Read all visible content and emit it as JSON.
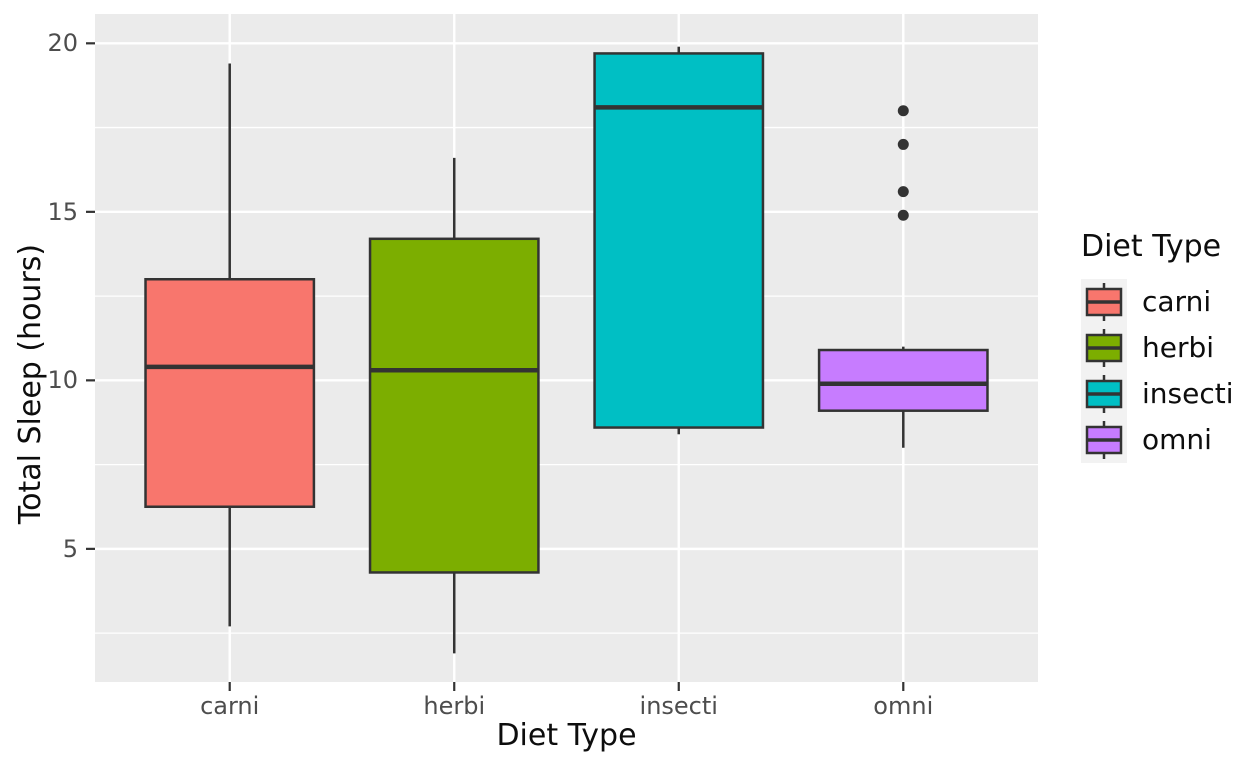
{
  "chart_data": {
    "type": "boxplot",
    "title": "",
    "xlabel": "Diet Type",
    "ylabel": "Total Sleep (hours)",
    "categories": [
      "carni",
      "herbi",
      "insecti",
      "omni"
    ],
    "series": [
      {
        "name": "carni",
        "color": "#F8766D",
        "min": 2.7,
        "q1": 6.25,
        "median": 10.4,
        "q3": 13.0,
        "max": 19.4,
        "outliers": []
      },
      {
        "name": "herbi",
        "color": "#7CAE00",
        "min": 1.9,
        "q1": 4.3,
        "median": 10.3,
        "q3": 14.2,
        "max": 16.6,
        "outliers": []
      },
      {
        "name": "insecti",
        "color": "#00BFC4",
        "min": 8.4,
        "q1": 8.6,
        "median": 18.1,
        "q3": 19.7,
        "max": 19.9,
        "outliers": []
      },
      {
        "name": "omni",
        "color": "#C77CFF",
        "min": 8.0,
        "q1": 9.1,
        "median": 9.9,
        "q3": 10.9,
        "max": 11.0,
        "outliers": [
          14.9,
          15.6,
          17.0,
          18.0
        ]
      }
    ],
    "ylim": [
      1.05,
      20.87
    ],
    "yticks_major": [
      5,
      10,
      15,
      20
    ],
    "yticks_minor": [
      2.5,
      7.5,
      12.5,
      17.5
    ],
    "grid": true,
    "legend": {
      "title": "Diet Type",
      "position": "right",
      "entries": [
        "carni",
        "herbi",
        "insecti",
        "omni"
      ]
    },
    "colors": {
      "panel_bg": "#EBEBEB",
      "grid": "#FFFFFF",
      "box_stroke": "#333333",
      "outlier": "#333333",
      "tick_mark": "#333333",
      "tick_label": "#4D4D4D",
      "title_text": "#0D0D0D",
      "legend_key_bg": "#F2F2F2"
    }
  }
}
